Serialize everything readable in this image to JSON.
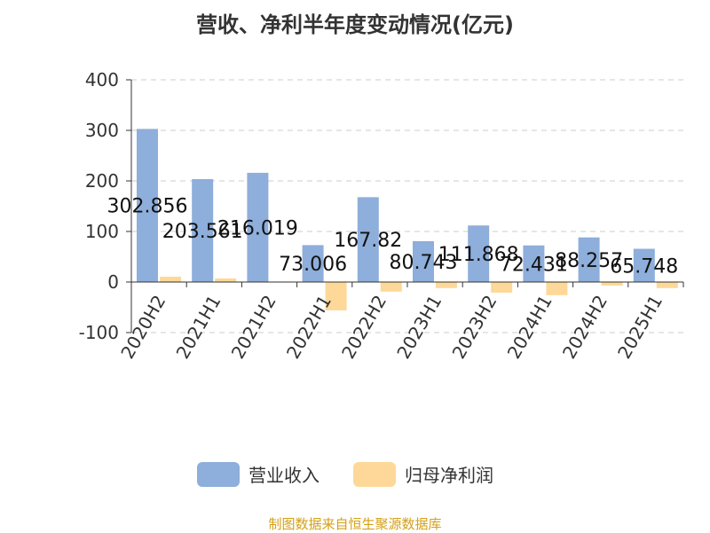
{
  "chart_data": {
    "type": "bar",
    "title": "营收、净利半年度变动情况(亿元)",
    "categories": [
      "2020H2",
      "2021H1",
      "2021H2",
      "2022H1",
      "2022H2",
      "2023H1",
      "2023H2",
      "2024H1",
      "2024H2",
      "2025H1"
    ],
    "series": [
      {
        "name": "营业收入",
        "color": "#8eaedb",
        "values": [
          302.856,
          203.561,
          216.019,
          73.006,
          167.82,
          80.743,
          111.868,
          72.431,
          88.257,
          65.748
        ],
        "labels": [
          "302.856",
          "203.561",
          "216.019",
          "73.006",
          "167.82",
          "80.743",
          "111.868",
          "72.431",
          "88.257",
          "65.748"
        ]
      },
      {
        "name": "归母净利润",
        "color": "#fdd898",
        "values": [
          10.5,
          7,
          -1,
          -56,
          -19,
          -12,
          -21,
          -26,
          -7,
          -12
        ]
      }
    ],
    "ylim": [
      -100,
      400
    ],
    "yticks": [
      "-100",
      "0",
      "100",
      "200",
      "300",
      "400"
    ],
    "grid": true,
    "legend_position": "bottom"
  },
  "source": "制图数据来自恒生聚源数据库"
}
